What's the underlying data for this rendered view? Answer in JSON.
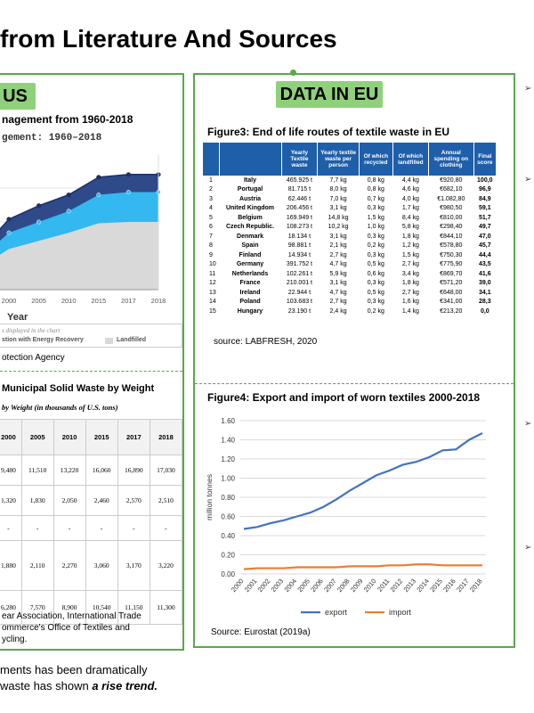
{
  "slide": {
    "title": "from Literature And Sources",
    "bottom_line1": "ments has been dramatically",
    "bottom_line2_prefix": "waste has shown ",
    "bottom_line2_emph": "a rise trend."
  },
  "left": {
    "tag": "US",
    "chart_title": "nagement from 1960-2018",
    "chart_subtitle": "gement: 1960–2018",
    "legend_note": "s displayed in the chart",
    "legend_a": "stion with Energy Recovery",
    "legend_b": "Landfilled",
    "source_text": "otection Agency",
    "table_title": "Municipal Solid Waste by Weight",
    "table_subtitle": "by Weight (in thousands of U.S. tons)",
    "table_columns": [
      "2000",
      "2005",
      "2010",
      "2015",
      "2017",
      "2018"
    ],
    "table_rows": [
      [
        "9,480",
        "11,510",
        "13,220",
        "16,060",
        "16,890",
        "17,030"
      ],
      [
        "1,320",
        "1,830",
        "2,050",
        "2,460",
        "2,570",
        "2,510"
      ],
      [
        "-",
        "-",
        "-",
        "-",
        "-",
        "-"
      ],
      [
        "1,880",
        "2,110",
        "2,270",
        "3,060",
        "3,170",
        "3,220"
      ],
      [
        "6,280",
        "7,570",
        "8,900",
        "10,540",
        "11,150",
        "11,300"
      ]
    ],
    "table_source_1": "ear Association, International Trade",
    "table_source_2": "ommerce's Office of Textiles and",
    "table_source_3": "ycling."
  },
  "right": {
    "tag": "DATA IN EU",
    "fig3_title": "Figure3: End of life routes of textile waste in EU",
    "fig3_headers": [
      "",
      "",
      "Yearly Textile waste",
      "Yearly textile waste per person",
      "Of which recycled",
      "Of which landfilled",
      "Annual spending on clothing",
      "Final score"
    ],
    "fig3_rows": [
      [
        "1",
        "Italy",
        "465.925 t",
        "7,7 kg",
        "0,8 kg",
        "4,4 kg",
        "€920,80",
        "100,0"
      ],
      [
        "2",
        "Portugal",
        "81.715 t",
        "8,0 kg",
        "0,8 kg",
        "4,6 kg",
        "€682,10",
        "96,9"
      ],
      [
        "3",
        "Austria",
        "62.446 t",
        "7,0 kg",
        "0,7 kg",
        "4,0 kg",
        "€1.082,80",
        "84,9"
      ],
      [
        "4",
        "United Kingdom",
        "206.456 t",
        "3,1 kg",
        "0,3 kg",
        "1,7 kg",
        "€980,50",
        "59,1"
      ],
      [
        "5",
        "Belgium",
        "169.949 t",
        "14,8 kg",
        "1,5 kg",
        "8,4 kg",
        "€810,00",
        "51,7"
      ],
      [
        "6",
        "Czech Republic.",
        "108.273 t",
        "10,2 kg",
        "1,0 kg",
        "5,8 kg",
        "€298,40",
        "49,7"
      ],
      [
        "7",
        "Denmark",
        "18.134 t",
        "3,1 kg",
        "0,3 kg",
        "1,8 kg",
        "€844,10",
        "47,0"
      ],
      [
        "8",
        "Spain",
        "98.881 t",
        "2,1 kg",
        "0,2 kg",
        "1,2 kg",
        "€578,80",
        "45,7"
      ],
      [
        "9",
        "Finland",
        "14.934 t",
        "2,7 kg",
        "0,3 kg",
        "1,5 kg",
        "€750,30",
        "44,4"
      ],
      [
        "10",
        "Germany",
        "391.752 t",
        "4,7 kg",
        "0,5 kg",
        "2,7 kg",
        "€775,90",
        "43,5"
      ],
      [
        "11",
        "Netherlands",
        "102.261 t",
        "5,9 kg",
        "0,6 kg",
        "3,4 kg",
        "€869,70",
        "41,6"
      ],
      [
        "12",
        "France",
        "210.001 t",
        "3,1 kg",
        "0,3 kg",
        "1,8 kg",
        "€571,20",
        "39,0"
      ],
      [
        "13",
        "Ireland",
        "22.944 t",
        "4,7 kg",
        "0,5 kg",
        "2,7 kg",
        "€648,00",
        "34,1"
      ],
      [
        "14",
        "Poland",
        "103.683 t",
        "2,7 kg",
        "0,3 kg",
        "1,6 kg",
        "€341,00",
        "28,3"
      ],
      [
        "15",
        "Hungary",
        "23.190 t",
        "2,4 kg",
        "0,2 kg",
        "1,4 kg",
        "€213,20",
        "0,0"
      ]
    ],
    "fig3_source": "source: LABFRESH, 2020",
    "fig4_title": "Figure4: Export and import of worn textiles 2000-2018",
    "fig4_source": "Source: Eurostat (2019a)"
  },
  "chart_data": [
    {
      "type": "area",
      "title": "nagement from 1960-2018",
      "subtitle": "gement: 1960–2018",
      "xlabel": "Year",
      "ylabel": "",
      "categories": [
        "2000",
        "2005",
        "2010",
        "2015",
        "2017",
        "2018"
      ],
      "series": [
        {
          "name": "Landfilled",
          "values": [
            0.3,
            0.36,
            0.42,
            0.49,
            0.5,
            0.5
          ]
        },
        {
          "name": "stion with Energy Recovery",
          "values": [
            0.42,
            0.5,
            0.58,
            0.7,
            0.72,
            0.72
          ]
        },
        {
          "name": "",
          "values": [
            0.52,
            0.62,
            0.7,
            0.83,
            0.85,
            0.85
          ]
        }
      ],
      "colors": [
        "#d9d9d9",
        "#33b8f0",
        "#2e4a88"
      ]
    },
    {
      "type": "line",
      "title": "Figure4: Export and import of worn textiles 2000-2018",
      "xlabel": "",
      "ylabel": "million tonnes",
      "x": [
        "2000",
        "2001",
        "2002",
        "2003",
        "2004",
        "2005",
        "2006",
        "2007",
        "2008",
        "2009",
        "2010",
        "2011",
        "2012",
        "2013",
        "2014",
        "2015",
        "2016",
        "2017",
        "2018"
      ],
      "series": [
        {
          "name": "export",
          "values": [
            0.47,
            0.49,
            0.53,
            0.56,
            0.6,
            0.64,
            0.7,
            0.78,
            0.87,
            0.95,
            1.03,
            1.08,
            1.14,
            1.17,
            1.22,
            1.29,
            1.3,
            1.4,
            1.47
          ]
        },
        {
          "name": "import",
          "values": [
            0.05,
            0.06,
            0.06,
            0.06,
            0.07,
            0.07,
            0.07,
            0.07,
            0.08,
            0.08,
            0.08,
            0.09,
            0.09,
            0.1,
            0.1,
            0.09,
            0.09,
            0.09,
            0.09
          ]
        }
      ],
      "ylim": [
        0,
        1.6
      ],
      "yticks": [
        "0.00",
        "0.20",
        "0.40",
        "0.60",
        "0.80",
        "1.00",
        "1.20",
        "1.40",
        "1.60"
      ],
      "colors": [
        "#4472c4",
        "#ed7d31"
      ],
      "legend": "bottom"
    }
  ]
}
